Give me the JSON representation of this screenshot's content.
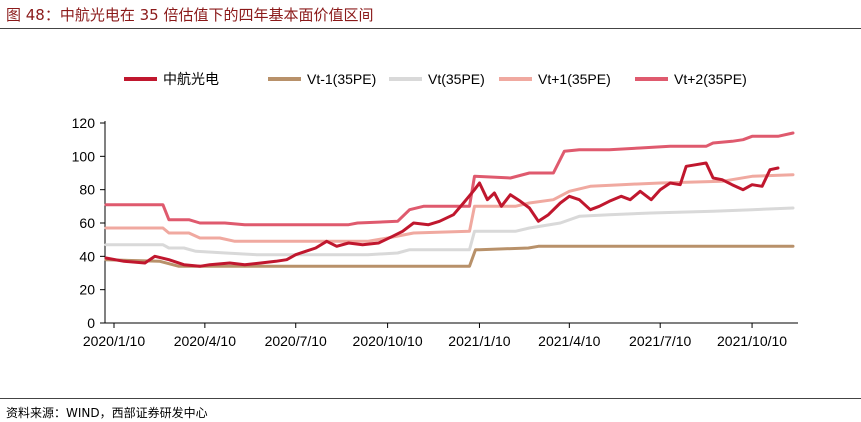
{
  "figure": {
    "title": "图 48：中航光电在 35 倍估值下的四年基本面价值区间",
    "source": "资料来源：WIND，西部证券研发中心"
  },
  "chart_data": {
    "type": "line",
    "title": "",
    "xlabel": "",
    "ylabel": "",
    "ylim": [
      0,
      120
    ],
    "yticks": [
      0,
      20,
      40,
      60,
      80,
      100,
      120
    ],
    "xlim": [
      "2020-01-01",
      "2021-11-25"
    ],
    "xtick_labels": [
      "2020/1/10",
      "2020/4/10",
      "2020/7/10",
      "2020/10/10",
      "2021/1/10",
      "2021/4/10",
      "2021/7/10",
      "2021/10/10"
    ],
    "xtick_dates": [
      "2020-01-10",
      "2020-04-10",
      "2020-07-10",
      "2020-10-10",
      "2021-01-10",
      "2021-04-10",
      "2021-07-10",
      "2021-10-10"
    ],
    "grid": false,
    "legend_position": "top",
    "series": [
      {
        "name": "中航光电",
        "color": "#c0172e",
        "width": 3,
        "points": [
          [
            "2020-01-02",
            39
          ],
          [
            "2020-01-20",
            37
          ],
          [
            "2020-02-10",
            36
          ],
          [
            "2020-02-20",
            40
          ],
          [
            "2020-03-05",
            38
          ],
          [
            "2020-03-20",
            35
          ],
          [
            "2020-04-05",
            34
          ],
          [
            "2020-04-15",
            35
          ],
          [
            "2020-05-05",
            36
          ],
          [
            "2020-05-20",
            35
          ],
          [
            "2020-06-05",
            36
          ],
          [
            "2020-06-20",
            37
          ],
          [
            "2020-07-01",
            38
          ],
          [
            "2020-07-10",
            41
          ],
          [
            "2020-07-20",
            43
          ],
          [
            "2020-07-30",
            45
          ],
          [
            "2020-08-10",
            49
          ],
          [
            "2020-08-20",
            46
          ],
          [
            "2020-09-01",
            48
          ],
          [
            "2020-09-15",
            47
          ],
          [
            "2020-10-01",
            48
          ],
          [
            "2020-10-15",
            52
          ],
          [
            "2020-10-25",
            55
          ],
          [
            "2020-11-05",
            60
          ],
          [
            "2020-11-20",
            59
          ],
          [
            "2020-12-01",
            61
          ],
          [
            "2020-12-15",
            65
          ],
          [
            "2020-12-25",
            72
          ],
          [
            "2021-01-05",
            80
          ],
          [
            "2021-01-10",
            84
          ],
          [
            "2021-01-18",
            74
          ],
          [
            "2021-01-25",
            78
          ],
          [
            "2021-02-01",
            70
          ],
          [
            "2021-02-10",
            77
          ],
          [
            "2021-02-20",
            73
          ],
          [
            "2021-03-01",
            69
          ],
          [
            "2021-03-10",
            61
          ],
          [
            "2021-03-20",
            65
          ],
          [
            "2021-04-01",
            72
          ],
          [
            "2021-04-10",
            76
          ],
          [
            "2021-04-20",
            74
          ],
          [
            "2021-05-01",
            68
          ],
          [
            "2021-05-10",
            70
          ],
          [
            "2021-05-20",
            73
          ],
          [
            "2021-06-01",
            76
          ],
          [
            "2021-06-10",
            74
          ],
          [
            "2021-06-20",
            79
          ],
          [
            "2021-07-01",
            74
          ],
          [
            "2021-07-10",
            80
          ],
          [
            "2021-07-20",
            84
          ],
          [
            "2021-07-30",
            83
          ],
          [
            "2021-08-05",
            94
          ],
          [
            "2021-08-15",
            95
          ],
          [
            "2021-08-25",
            96
          ],
          [
            "2021-09-01",
            87
          ],
          [
            "2021-09-10",
            86
          ],
          [
            "2021-09-20",
            83
          ],
          [
            "2021-10-01",
            80
          ],
          [
            "2021-10-10",
            83
          ],
          [
            "2021-10-20",
            82
          ],
          [
            "2021-10-28",
            92
          ],
          [
            "2021-11-05",
            93
          ]
        ]
      },
      {
        "name": "Vt-1(35PE)",
        "color": "#b8916a",
        "width": 3,
        "points": [
          [
            "2020-01-02",
            38
          ],
          [
            "2020-02-25",
            37
          ],
          [
            "2020-03-15",
            34
          ],
          [
            "2020-04-30",
            34
          ],
          [
            "2020-05-15",
            34
          ],
          [
            "2020-12-31",
            34
          ],
          [
            "2021-01-06",
            44
          ],
          [
            "2021-01-10",
            44
          ],
          [
            "2021-02-28",
            45
          ],
          [
            "2021-03-10",
            46
          ],
          [
            "2021-11-20",
            46
          ]
        ]
      },
      {
        "name": "Vt(35PE)",
        "color": "#d9d9d9",
        "width": 3,
        "points": [
          [
            "2020-01-02",
            47
          ],
          [
            "2020-02-28",
            47
          ],
          [
            "2020-03-05",
            45
          ],
          [
            "2020-03-20",
            45
          ],
          [
            "2020-04-01",
            43
          ],
          [
            "2020-05-01",
            42
          ],
          [
            "2020-06-01",
            41
          ],
          [
            "2020-09-20",
            41
          ],
          [
            "2020-10-20",
            42
          ],
          [
            "2020-11-01",
            44
          ],
          [
            "2020-12-31",
            44
          ],
          [
            "2021-01-05",
            55
          ],
          [
            "2021-02-15",
            55
          ],
          [
            "2021-03-01",
            57
          ],
          [
            "2021-04-01",
            60
          ],
          [
            "2021-04-20",
            64
          ],
          [
            "2021-05-20",
            65
          ],
          [
            "2021-07-01",
            66
          ],
          [
            "2021-09-01",
            67
          ],
          [
            "2021-10-10",
            68
          ],
          [
            "2021-11-20",
            69
          ]
        ]
      },
      {
        "name": "Vt+1(35PE)",
        "color": "#f0a9a0",
        "width": 3,
        "points": [
          [
            "2020-01-02",
            57
          ],
          [
            "2020-02-28",
            57
          ],
          [
            "2020-03-05",
            54
          ],
          [
            "2020-03-25",
            54
          ],
          [
            "2020-04-05",
            51
          ],
          [
            "2020-04-25",
            51
          ],
          [
            "2020-05-10",
            49
          ],
          [
            "2020-09-20",
            49
          ],
          [
            "2020-10-10",
            51
          ],
          [
            "2020-11-05",
            54
          ],
          [
            "2020-12-31",
            55
          ],
          [
            "2021-01-05",
            70
          ],
          [
            "2021-02-15",
            70
          ],
          [
            "2021-03-01",
            72
          ],
          [
            "2021-03-25",
            74
          ],
          [
            "2021-04-10",
            79
          ],
          [
            "2021-05-01",
            82
          ],
          [
            "2021-06-01",
            83
          ],
          [
            "2021-07-10",
            84
          ],
          [
            "2021-09-10",
            85
          ],
          [
            "2021-10-10",
            88
          ],
          [
            "2021-11-20",
            89
          ]
        ]
      },
      {
        "name": "Vt+2(35PE)",
        "color": "#df5a6e",
        "width": 3,
        "points": [
          [
            "2020-01-02",
            71
          ],
          [
            "2020-02-28",
            71
          ],
          [
            "2020-03-05",
            62
          ],
          [
            "2020-03-25",
            62
          ],
          [
            "2020-04-05",
            60
          ],
          [
            "2020-04-30",
            60
          ],
          [
            "2020-05-20",
            59
          ],
          [
            "2020-09-01",
            59
          ],
          [
            "2020-09-10",
            60
          ],
          [
            "2020-10-20",
            61
          ],
          [
            "2020-11-01",
            68
          ],
          [
            "2020-11-15",
            70
          ],
          [
            "2020-12-31",
            70
          ],
          [
            "2021-01-05",
            88
          ],
          [
            "2021-02-10",
            87
          ],
          [
            "2021-03-01",
            90
          ],
          [
            "2021-03-25",
            90
          ],
          [
            "2021-04-05",
            103
          ],
          [
            "2021-04-20",
            104
          ],
          [
            "2021-05-20",
            104
          ],
          [
            "2021-06-20",
            105
          ],
          [
            "2021-07-20",
            106
          ],
          [
            "2021-08-25",
            106
          ],
          [
            "2021-09-01",
            108
          ],
          [
            "2021-09-20",
            109
          ],
          [
            "2021-10-01",
            110
          ],
          [
            "2021-10-10",
            112
          ],
          [
            "2021-11-05",
            112
          ],
          [
            "2021-11-20",
            114
          ]
        ]
      }
    ]
  }
}
